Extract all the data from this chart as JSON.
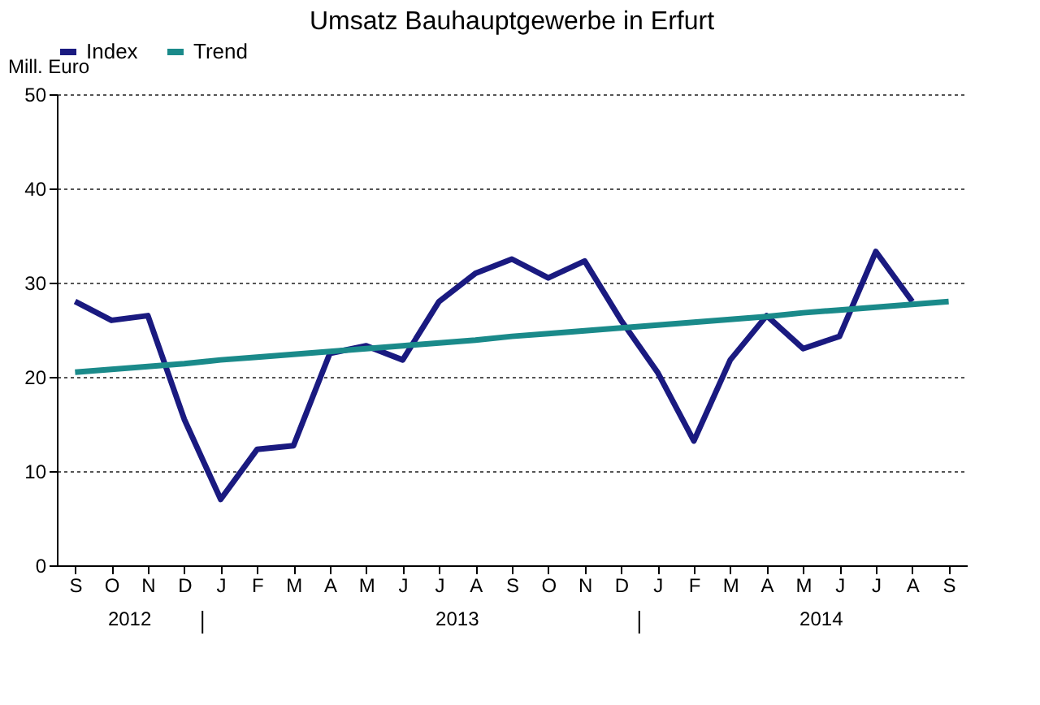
{
  "chart_data": {
    "type": "line",
    "title": "Umsatz Bauhauptgewerbe in Erfurt",
    "ylabel": "Mill. Euro",
    "categories": [
      "S",
      "O",
      "N",
      "D",
      "J",
      "F",
      "M",
      "A",
      "M",
      "J",
      "J",
      "A",
      "S",
      "O",
      "N",
      "D",
      "J",
      "F",
      "M",
      "A",
      "M",
      "J",
      "J",
      "A",
      "S"
    ],
    "series": [
      {
        "name": "Index",
        "color": "#1a1a80",
        "values": [
          28,
          26,
          26.5,
          15.5,
          7,
          12.3,
          12.7,
          22.5,
          23.3,
          21.8,
          28,
          31,
          32.5,
          30.5,
          32.3,
          26,
          20.5,
          13.2,
          21.8,
          26.5,
          23,
          24.3,
          33.3,
          28,
          null
        ]
      },
      {
        "name": "Trend",
        "color": "#1a8a8a",
        "values": [
          20.5,
          20.8,
          21.1,
          21.4,
          21.8,
          22.1,
          22.4,
          22.7,
          23,
          23.3,
          23.6,
          23.9,
          24.3,
          24.6,
          24.9,
          25.2,
          25.5,
          25.8,
          26.1,
          26.4,
          26.8,
          27.1,
          27.4,
          27.7,
          28
        ]
      }
    ],
    "ylim": [
      0,
      50
    ],
    "yticks": [
      0,
      10,
      20,
      30,
      40,
      50
    ],
    "grid": "y",
    "legend": "top",
    "annotations": [
      "2012",
      "2013",
      "2014"
    ]
  }
}
